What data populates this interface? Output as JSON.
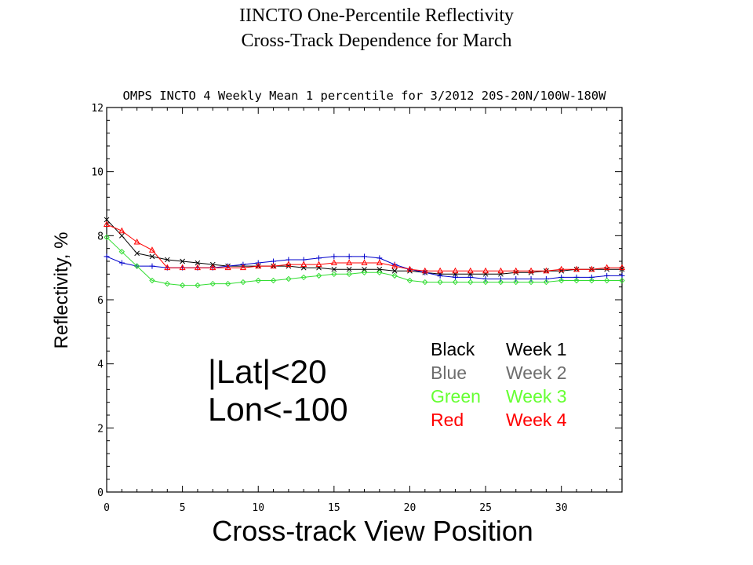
{
  "slide": {
    "title_line1": "IINCTO One-Percentile Reflectivity",
    "title_line2": "Cross-Track Dependence for March"
  },
  "annotation": {
    "line1": "|Lat|<20",
    "line2": "Lon<-100"
  },
  "legend": [
    {
      "color_name": "Black",
      "week": "Week 1",
      "color": "#000000"
    },
    {
      "color_name": "Blue",
      "week": "Week 2",
      "color": "#6e6e6e"
    },
    {
      "color_name": "Green",
      "week": "Week 3",
      "color": "#66ff33"
    },
    {
      "color_name": "Red",
      "week": "Week 4",
      "color": "#ff0000"
    }
  ],
  "chart_data": {
    "type": "line",
    "title": "OMPS INCTO 4 Weekly Mean 1 percentile for 3/2012 20S-20N/100W-180W",
    "xlabel": "Cross-track View Position",
    "ylabel": "Reflectivity, %",
    "xlim": [
      0,
      34
    ],
    "ylim": [
      0,
      12
    ],
    "xticks": [
      0,
      5,
      10,
      15,
      20,
      25,
      30
    ],
    "yticks": [
      0,
      2,
      4,
      6,
      8,
      10,
      12
    ],
    "grid": false,
    "x": [
      0,
      1,
      2,
      3,
      4,
      5,
      6,
      7,
      8,
      9,
      10,
      11,
      12,
      13,
      14,
      15,
      16,
      17,
      18,
      19,
      20,
      21,
      22,
      23,
      24,
      25,
      26,
      27,
      28,
      29,
      30,
      31,
      32,
      33,
      34
    ],
    "series": [
      {
        "name": "Week 1",
        "color": "#000000",
        "marker": "x",
        "values": [
          8.5,
          8.0,
          7.45,
          7.35,
          7.25,
          7.2,
          7.15,
          7.1,
          7.05,
          7.05,
          7.05,
          7.05,
          7.05,
          7.0,
          7.0,
          6.95,
          6.95,
          6.95,
          6.95,
          6.9,
          6.9,
          6.85,
          6.8,
          6.8,
          6.8,
          6.8,
          6.8,
          6.85,
          6.85,
          6.9,
          6.9,
          6.95,
          6.95,
          6.95,
          6.95
        ]
      },
      {
        "name": "Week 2",
        "color": "#0000cc",
        "marker": "plus",
        "values": [
          7.35,
          7.15,
          7.05,
          7.05,
          7.0,
          7.0,
          7.0,
          7.0,
          7.05,
          7.1,
          7.15,
          7.2,
          7.25,
          7.25,
          7.3,
          7.35,
          7.35,
          7.35,
          7.3,
          7.1,
          6.95,
          6.85,
          6.75,
          6.7,
          6.7,
          6.65,
          6.65,
          6.65,
          6.65,
          6.65,
          6.7,
          6.7,
          6.7,
          6.75,
          6.75
        ]
      },
      {
        "name": "Week 3",
        "color": "#33dd33",
        "marker": "diamond",
        "values": [
          7.95,
          7.5,
          7.05,
          6.6,
          6.5,
          6.45,
          6.45,
          6.5,
          6.5,
          6.55,
          6.6,
          6.6,
          6.65,
          6.7,
          6.75,
          6.8,
          6.8,
          6.85,
          6.85,
          6.75,
          6.6,
          6.55,
          6.55,
          6.55,
          6.55,
          6.55,
          6.55,
          6.55,
          6.55,
          6.55,
          6.6,
          6.6,
          6.6,
          6.6,
          6.6
        ]
      },
      {
        "name": "Week 4",
        "color": "#ff0000",
        "marker": "triangle",
        "values": [
          8.35,
          8.15,
          7.8,
          7.55,
          7.0,
          7.0,
          7.0,
          7.0,
          7.0,
          7.0,
          7.05,
          7.05,
          7.1,
          7.1,
          7.1,
          7.15,
          7.15,
          7.15,
          7.15,
          7.05,
          6.95,
          6.9,
          6.9,
          6.9,
          6.9,
          6.9,
          6.9,
          6.9,
          6.9,
          6.9,
          6.95,
          6.95,
          6.95,
          7.0,
          7.0
        ]
      }
    ]
  }
}
